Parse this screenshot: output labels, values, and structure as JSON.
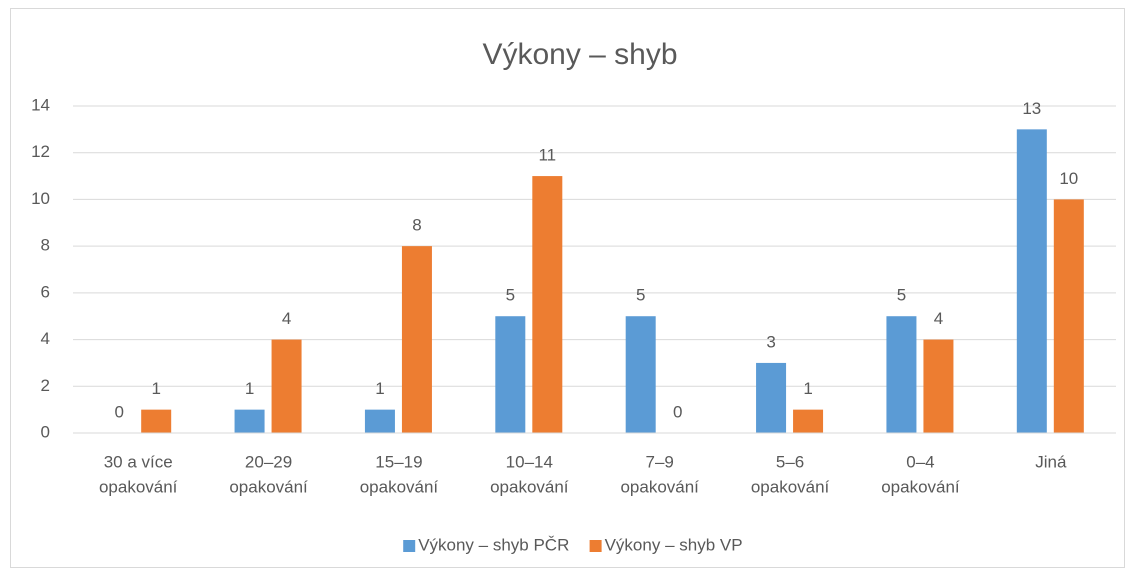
{
  "chart_data": {
    "type": "bar",
    "title": "Výkony – shyb",
    "categories": [
      [
        "30 a více",
        "opakování"
      ],
      [
        "20–29",
        "opakování"
      ],
      [
        "15–19",
        "opakování"
      ],
      [
        "10–14",
        "opakování"
      ],
      [
        "7–9",
        "opakování"
      ],
      [
        "5–6",
        "opakování"
      ],
      [
        "0–4",
        "opakování"
      ],
      [
        "Jiná"
      ]
    ],
    "series": [
      {
        "name": "Výkony – shyb PČR",
        "color": "#5b9bd5",
        "values": [
          0,
          1,
          1,
          5,
          5,
          3,
          5,
          13
        ]
      },
      {
        "name": "Výkony – shyb VP",
        "color": "#ed7d31",
        "values": [
          1,
          4,
          8,
          11,
          0,
          1,
          4,
          10
        ]
      }
    ],
    "ylim": [
      0,
      14
    ],
    "yticks": [
      0,
      2,
      4,
      6,
      8,
      10,
      12,
      14
    ],
    "grid": true,
    "legend": "bottom"
  }
}
